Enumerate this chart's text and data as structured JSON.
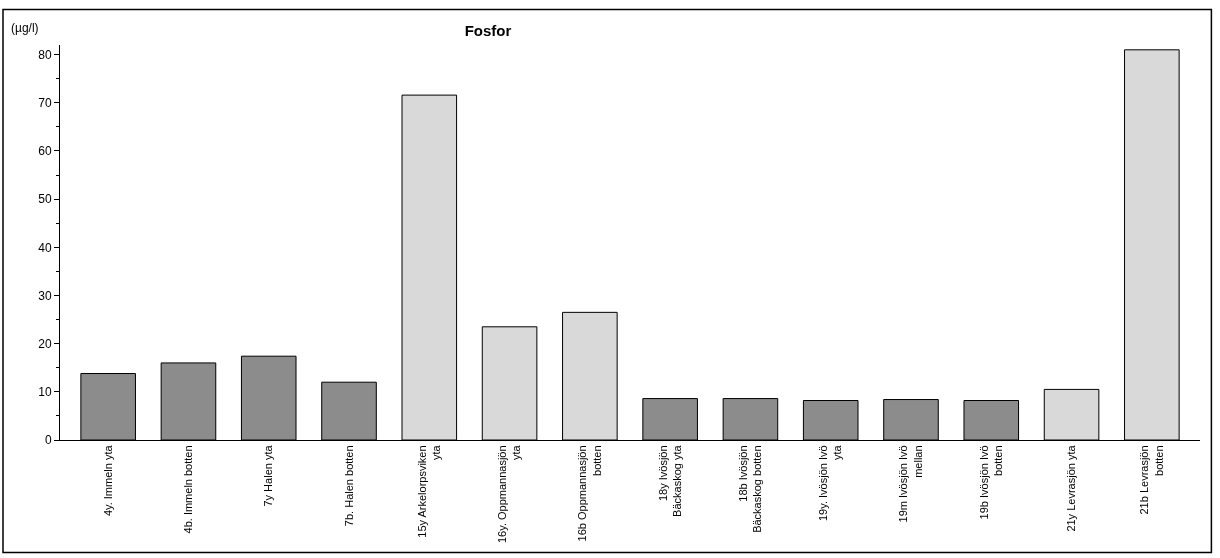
{
  "chart_data": {
    "type": "bar",
    "title": "Fosfor",
    "ylabel": "(µg/l)",
    "categories": [
      "4y. Immeln yta",
      "4b. Immeln botten",
      "7y  Halen yta",
      "7b. Halen botten",
      "15y Arkelorpsviken yta",
      "16y. Oppmannasjön yta",
      "16b Oppmannasjön botten",
      "18y  Ivösjön Bäckaskog yta",
      "18b  Ivösjön Bäckaskog botten",
      "19y. Ivösjön Ivö yta",
      "19m  Ivösjön Ivö mellan",
      "19b  Ivösjön Ivö botten",
      "21y  Levrasjön yta",
      "21b  Levrasjön botten"
    ],
    "values": [
      13.8,
      16,
      17.4,
      12,
      71.6,
      23.5,
      26.5,
      8.6,
      8.6,
      8.2,
      8.4,
      8.2,
      10.5,
      81
    ],
    "colors": [
      "#8c8c8c",
      "#8c8c8c",
      "#8c8c8c",
      "#8c8c8c",
      "#d9d9d9",
      "#d9d9d9",
      "#d9d9d9",
      "#8c8c8c",
      "#8c8c8c",
      "#8c8c8c",
      "#8c8c8c",
      "#8c8c8c",
      "#d9d9d9",
      "#d9d9d9"
    ],
    "ylim": [
      0,
      82
    ],
    "yticks": [
      0,
      10,
      20,
      30,
      40,
      50,
      60,
      70,
      80
    ]
  }
}
